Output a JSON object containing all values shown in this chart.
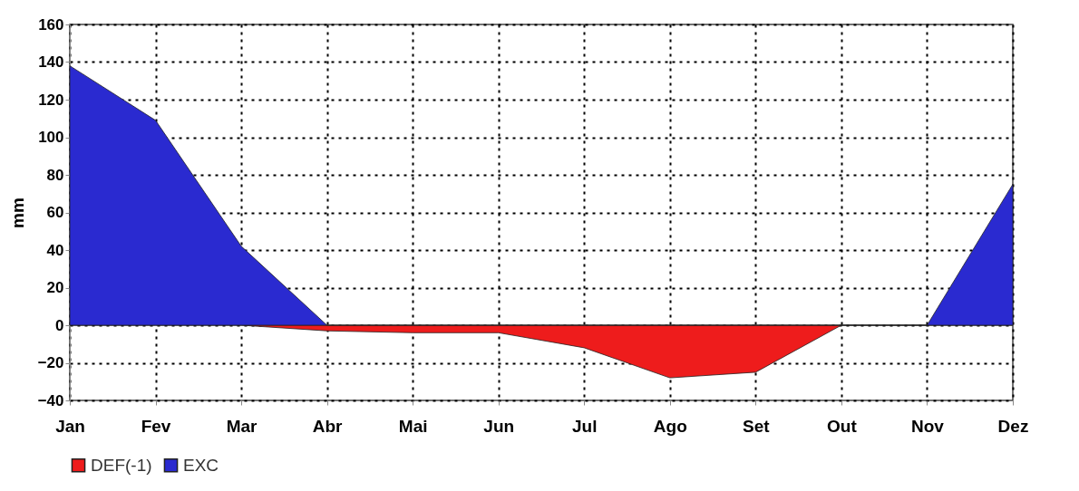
{
  "chart_data": {
    "type": "area",
    "ylabel": "mm",
    "categories": [
      "Jan",
      "Fev",
      "Mar",
      "Abr",
      "Mai",
      "Jun",
      "Jul",
      "Ago",
      "Set",
      "Out",
      "Nov",
      "Dez"
    ],
    "series": [
      {
        "name": "DEF(-1)",
        "color": "#ee1c1c",
        "values": [
          0,
          0,
          0,
          -3,
          -4,
          -4,
          -12,
          -28,
          -25,
          0,
          0,
          0
        ]
      },
      {
        "name": "EXC",
        "color": "#2a2ad0",
        "values": [
          138,
          109,
          42,
          0,
          0,
          0,
          0,
          0,
          0,
          0,
          0,
          75
        ]
      }
    ],
    "ylim": [
      -40,
      160
    ],
    "yticks": [
      -40,
      -20,
      0,
      20,
      40,
      60,
      80,
      100,
      120,
      140,
      160
    ],
    "grid": true,
    "legend": "bottom"
  }
}
